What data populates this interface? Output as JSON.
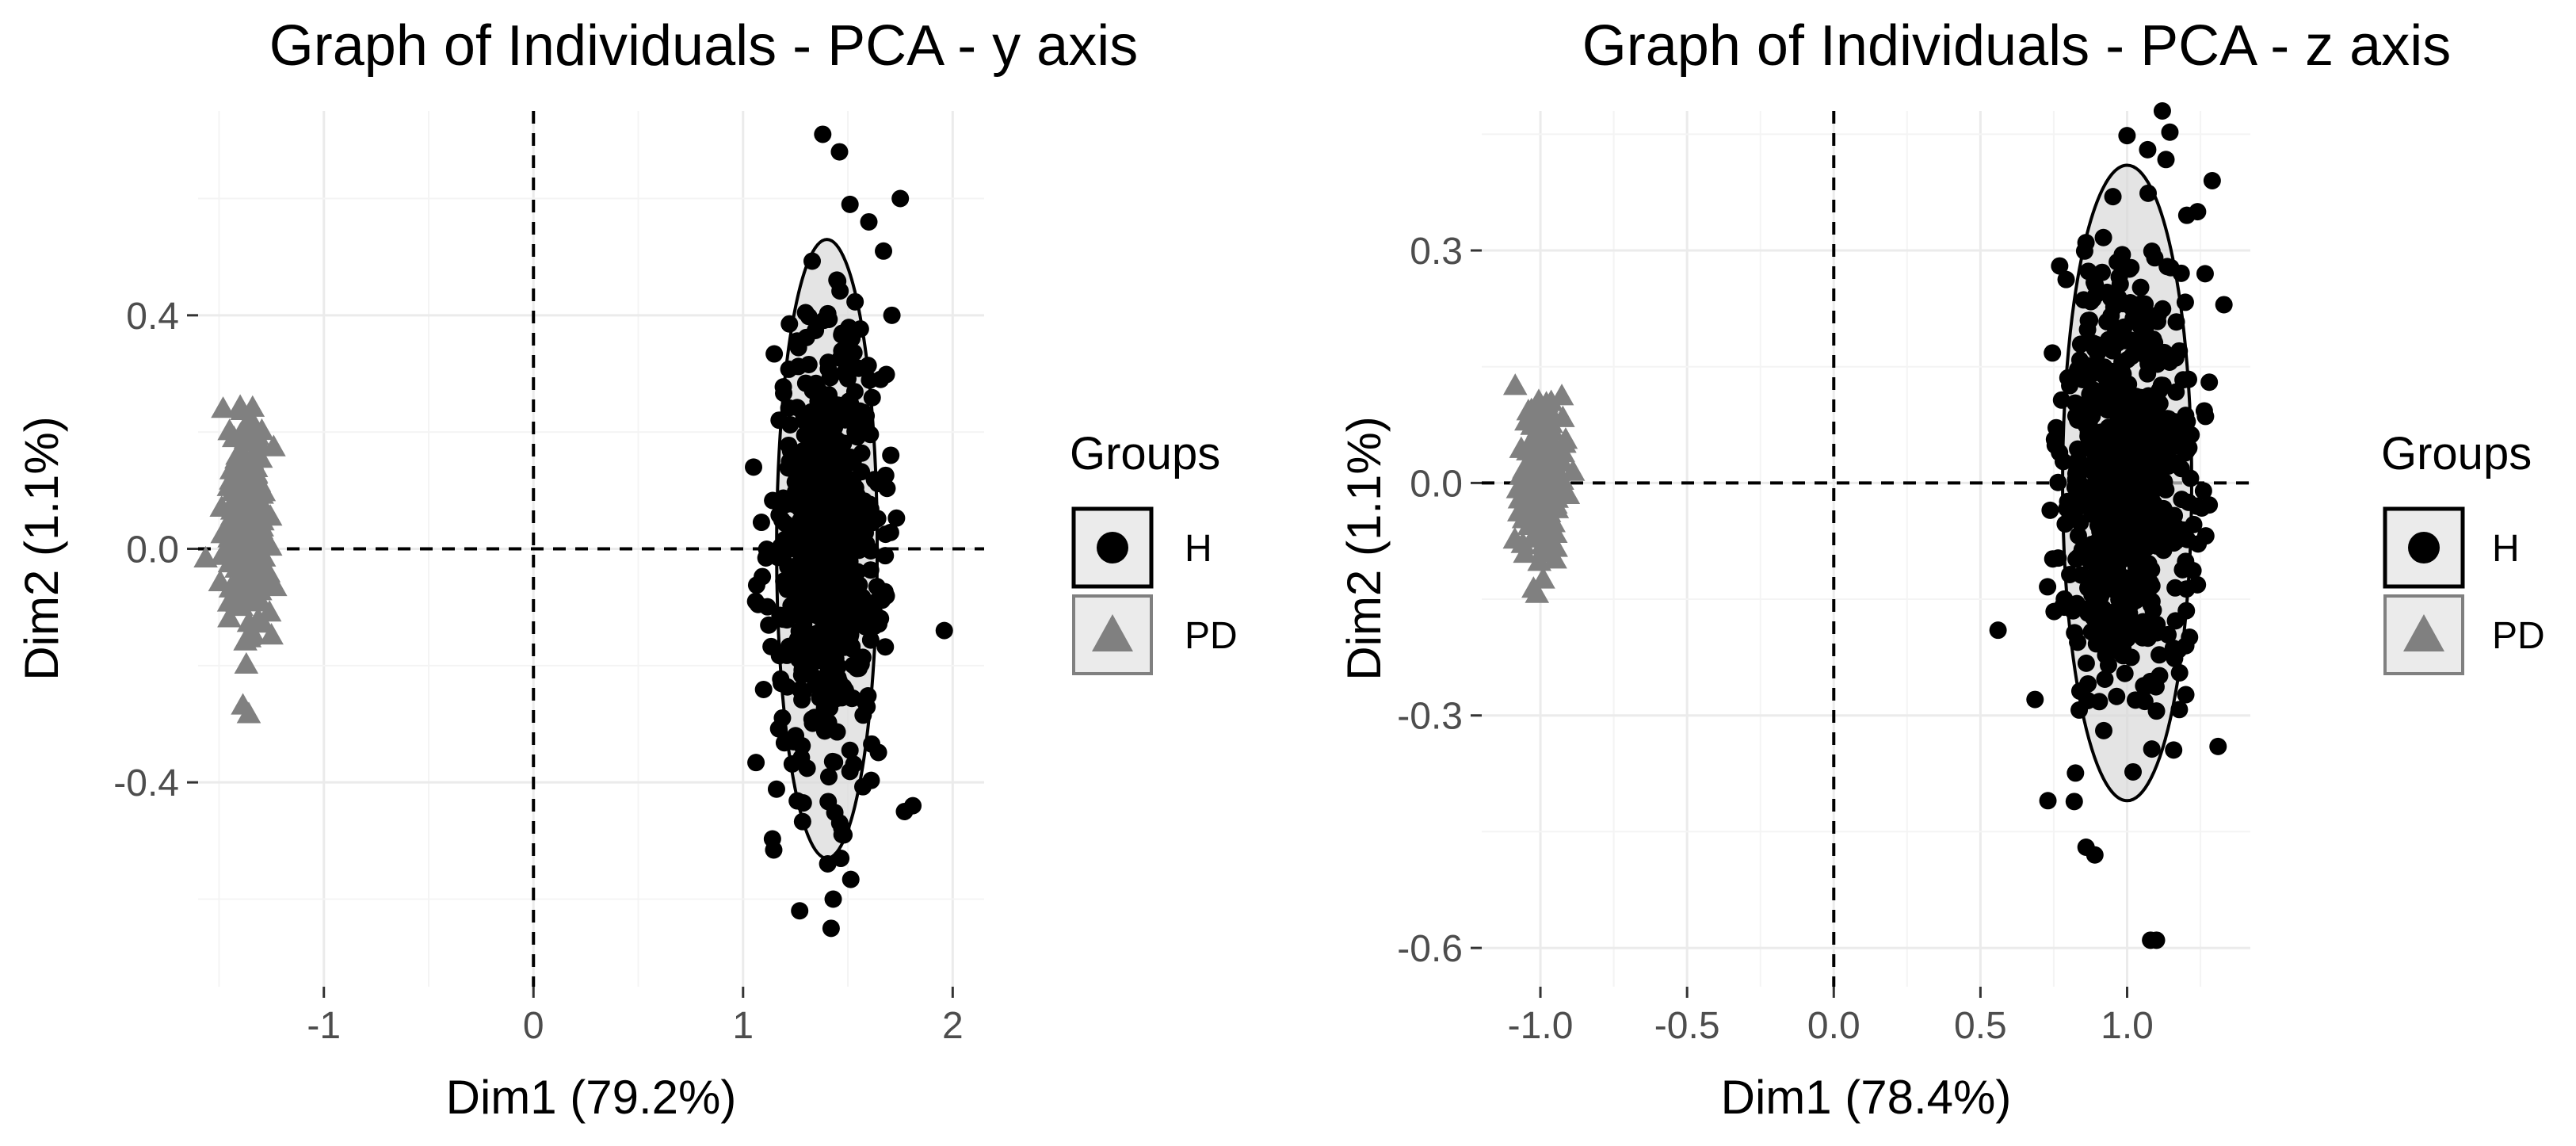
{
  "chart_data": [
    {
      "type": "scatter",
      "title": "Graph of Individuals - PCA - y axis",
      "xlabel": "Dim1 (79.2%)",
      "ylabel": "Dim2 (1.1%)",
      "xlim": [
        -1.6,
        2.15
      ],
      "ylim": [
        -0.75,
        0.75
      ],
      "xticks": [
        {
          "value": -1,
          "label": "-1"
        },
        {
          "value": 0,
          "label": "0"
        },
        {
          "value": 1,
          "label": "1"
        },
        {
          "value": 2,
          "label": "2"
        }
      ],
      "yticks": [
        {
          "value": -0.4,
          "label": "-0.4"
        },
        {
          "value": 0.0,
          "label": "0.0"
        },
        {
          "value": 0.4,
          "label": "0.4"
        }
      ],
      "grid": true,
      "reference_lines": {
        "x": 0,
        "y": 0
      },
      "legend": {
        "title": "Groups",
        "placement": "right",
        "entries": [
          {
            "label": "H",
            "shape": "circle",
            "color": "#000000"
          },
          {
            "label": "PD",
            "shape": "triangle",
            "color": "#808080"
          }
        ]
      },
      "series": [
        {
          "name": "H",
          "shape": "circle",
          "color": "#000000",
          "center": [
            1.4,
            0.0
          ],
          "spread": [
            0.13,
            0.18
          ],
          "n": 650,
          "points": [
            [
              1.38,
              0.71
            ],
            [
              1.46,
              0.68
            ],
            [
              1.51,
              0.59
            ],
            [
              1.75,
              0.6
            ],
            [
              1.67,
              0.51
            ],
            [
              1.96,
              -0.14
            ],
            [
              1.81,
              -0.44
            ],
            [
              1.77,
              -0.45
            ],
            [
              1.42,
              -0.65
            ],
            [
              1.27,
              -0.62
            ],
            [
              1.43,
              -0.6
            ],
            [
              1.06,
              -0.09
            ],
            [
              1.05,
              0.14
            ],
            [
              1.71,
              0.4
            ],
            [
              1.6,
              0.56
            ]
          ],
          "ellipse": {
            "center": [
              1.4,
              0.0
            ],
            "semi_axes": [
              0.24,
              0.53
            ]
          }
        },
        {
          "name": "PD",
          "shape": "triangle",
          "color": "#808080",
          "center": [
            -1.36,
            0.02
          ],
          "spread": [
            0.05,
            0.09
          ],
          "n": 260,
          "points": [
            [
              -1.34,
              0.24
            ],
            [
              -1.37,
              -0.2
            ],
            [
              -1.25,
              -0.15
            ],
            [
              -1.45,
              0.2
            ]
          ]
        }
      ]
    },
    {
      "type": "scatter",
      "title": "Graph of Individuals - PCA - z axis",
      "xlabel": "Dim1 (78.4%)",
      "ylabel": "Dim2 (1.1%)",
      "xlim": [
        -1.2,
        1.42
      ],
      "ylim": [
        -0.65,
        0.48
      ],
      "xticks": [
        {
          "value": -1.0,
          "label": "-1.0"
        },
        {
          "value": -0.5,
          "label": "-0.5"
        },
        {
          "value": 0.0,
          "label": "0.0"
        },
        {
          "value": 0.5,
          "label": "0.5"
        },
        {
          "value": 1.0,
          "label": "1.0"
        }
      ],
      "yticks": [
        {
          "value": -0.6,
          "label": "-0.6"
        },
        {
          "value": -0.3,
          "label": "-0.3"
        },
        {
          "value": 0.0,
          "label": "0.0"
        },
        {
          "value": 0.3,
          "label": "0.3"
        }
      ],
      "grid": true,
      "reference_lines": {
        "x": 0,
        "y": 0
      },
      "legend": {
        "title": "Groups",
        "placement": "right",
        "entries": [
          {
            "label": "H",
            "shape": "circle",
            "color": "#000000"
          },
          {
            "label": "PD",
            "shape": "triangle",
            "color": "#808080"
          }
        ]
      },
      "series": [
        {
          "name": "H",
          "shape": "circle",
          "color": "#000000",
          "center": [
            1.0,
            0.0
          ],
          "spread": [
            0.11,
            0.14
          ],
          "n": 650,
          "points": [
            [
              1.12,
              0.48
            ],
            [
              1.07,
              0.43
            ],
            [
              1.29,
              0.39
            ],
            [
              1.24,
              0.35
            ],
            [
              0.56,
              -0.19
            ],
            [
              1.1,
              -0.59
            ],
            [
              1.08,
              -0.59
            ],
            [
              0.86,
              -0.47
            ],
            [
              0.89,
              -0.48
            ],
            [
              0.73,
              -0.41
            ],
            [
              1.31,
              -0.34
            ],
            [
              1.33,
              0.23
            ],
            [
              1.28,
              0.13
            ],
            [
              0.77,
              0.28
            ],
            [
              1.2,
              -0.21
            ]
          ],
          "ellipse": {
            "center": [
              1.0,
              0.0
            ],
            "semi_axes": [
              0.22,
              0.41
            ]
          }
        },
        {
          "name": "PD",
          "shape": "triangle",
          "color": "#808080",
          "center": [
            -1.0,
            0.0
          ],
          "spread": [
            0.04,
            0.045
          ],
          "n": 170,
          "points": [
            [
              -1.03,
              0.09
            ],
            [
              -0.95,
              -0.1
            ],
            [
              -1.06,
              -0.08
            ]
          ]
        }
      ]
    }
  ]
}
